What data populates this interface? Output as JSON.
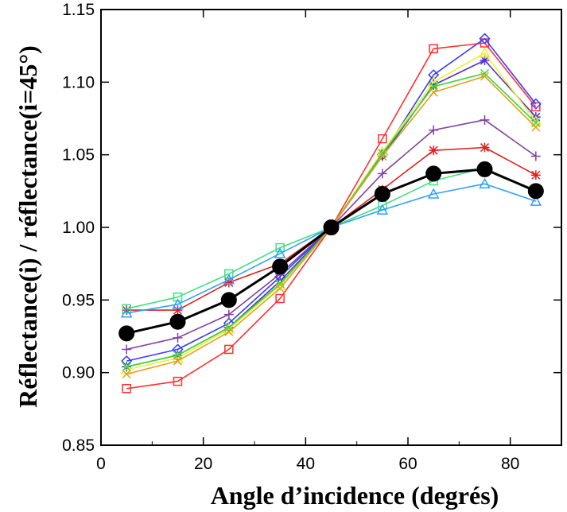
{
  "chart_data": {
    "type": "line",
    "xlabel": "Angle d’incidence (degrés)",
    "ylabel": "Réflectance(i) / réflectance(i=45°)",
    "xlim": [
      0,
      90
    ],
    "ylim": [
      0.85,
      1.15
    ],
    "xticks": [
      0,
      20,
      40,
      60,
      80
    ],
    "xtick_labels": [
      "0",
      "20",
      "40",
      "60",
      "80"
    ],
    "yticks": [
      0.85,
      0.9,
      0.95,
      1.0,
      1.05,
      1.1,
      1.15
    ],
    "ytick_labels": [
      "0.85",
      "0.90",
      "0.95",
      "1.00",
      "1.05",
      "1.10",
      "1.15"
    ],
    "grid": false,
    "x": [
      5,
      15,
      25,
      35,
      45,
      55,
      65,
      75,
      85
    ],
    "series": [
      {
        "color": "#ff3030",
        "marker": "square",
        "values": [
          0.889,
          0.894,
          0.916,
          0.951,
          1.0,
          1.061,
          1.123,
          1.127,
          1.083
        ]
      },
      {
        "color": "#3a3aff",
        "marker": "diamond",
        "values": [
          0.908,
          0.916,
          0.934,
          0.966,
          1.0,
          1.05,
          1.105,
          1.13,
          1.085
        ]
      },
      {
        "color": "#8040a0",
        "marker": "plus",
        "values": [
          0.916,
          0.924,
          0.94,
          0.968,
          1.0,
          1.037,
          1.067,
          1.074,
          1.049
        ]
      },
      {
        "color": "#5030d0",
        "marker": "star",
        "values": [
          0.904,
          0.912,
          0.931,
          0.963,
          1.0,
          1.049,
          1.098,
          1.115,
          1.076
        ]
      },
      {
        "color": "#eeee30",
        "marker": "triangle",
        "values": [
          0.902,
          0.91,
          0.93,
          0.96,
          1.0,
          1.052,
          1.1,
          1.12,
          1.073
        ]
      },
      {
        "color": "#33dd33",
        "marker": "cross",
        "values": [
          0.904,
          0.912,
          0.931,
          0.961,
          1.0,
          1.051,
          1.097,
          1.106,
          1.072
        ]
      },
      {
        "color": "#e0a020",
        "marker": "cross",
        "values": [
          0.899,
          0.908,
          0.928,
          0.958,
          1.0,
          1.049,
          1.093,
          1.104,
          1.069
        ]
      },
      {
        "color": "#dd2020",
        "marker": "star",
        "values": [
          0.943,
          0.943,
          0.962,
          0.975,
          1.0,
          1.026,
          1.053,
          1.055,
          1.036
        ]
      },
      {
        "color": "#40e080",
        "marker": "square",
        "values": [
          0.944,
          0.952,
          0.968,
          0.986,
          1.0,
          1.015,
          1.032,
          1.041,
          1.024
        ]
      },
      {
        "color": "#30a0ff",
        "marker": "triangle",
        "values": [
          0.941,
          0.947,
          0.964,
          0.982,
          1.0,
          1.012,
          1.023,
          1.03,
          1.018
        ]
      },
      {
        "color": "#000000",
        "marker": "circle",
        "values": [
          0.927,
          0.935,
          0.95,
          0.973,
          1.0,
          1.023,
          1.037,
          1.04,
          1.025
        ]
      }
    ]
  }
}
